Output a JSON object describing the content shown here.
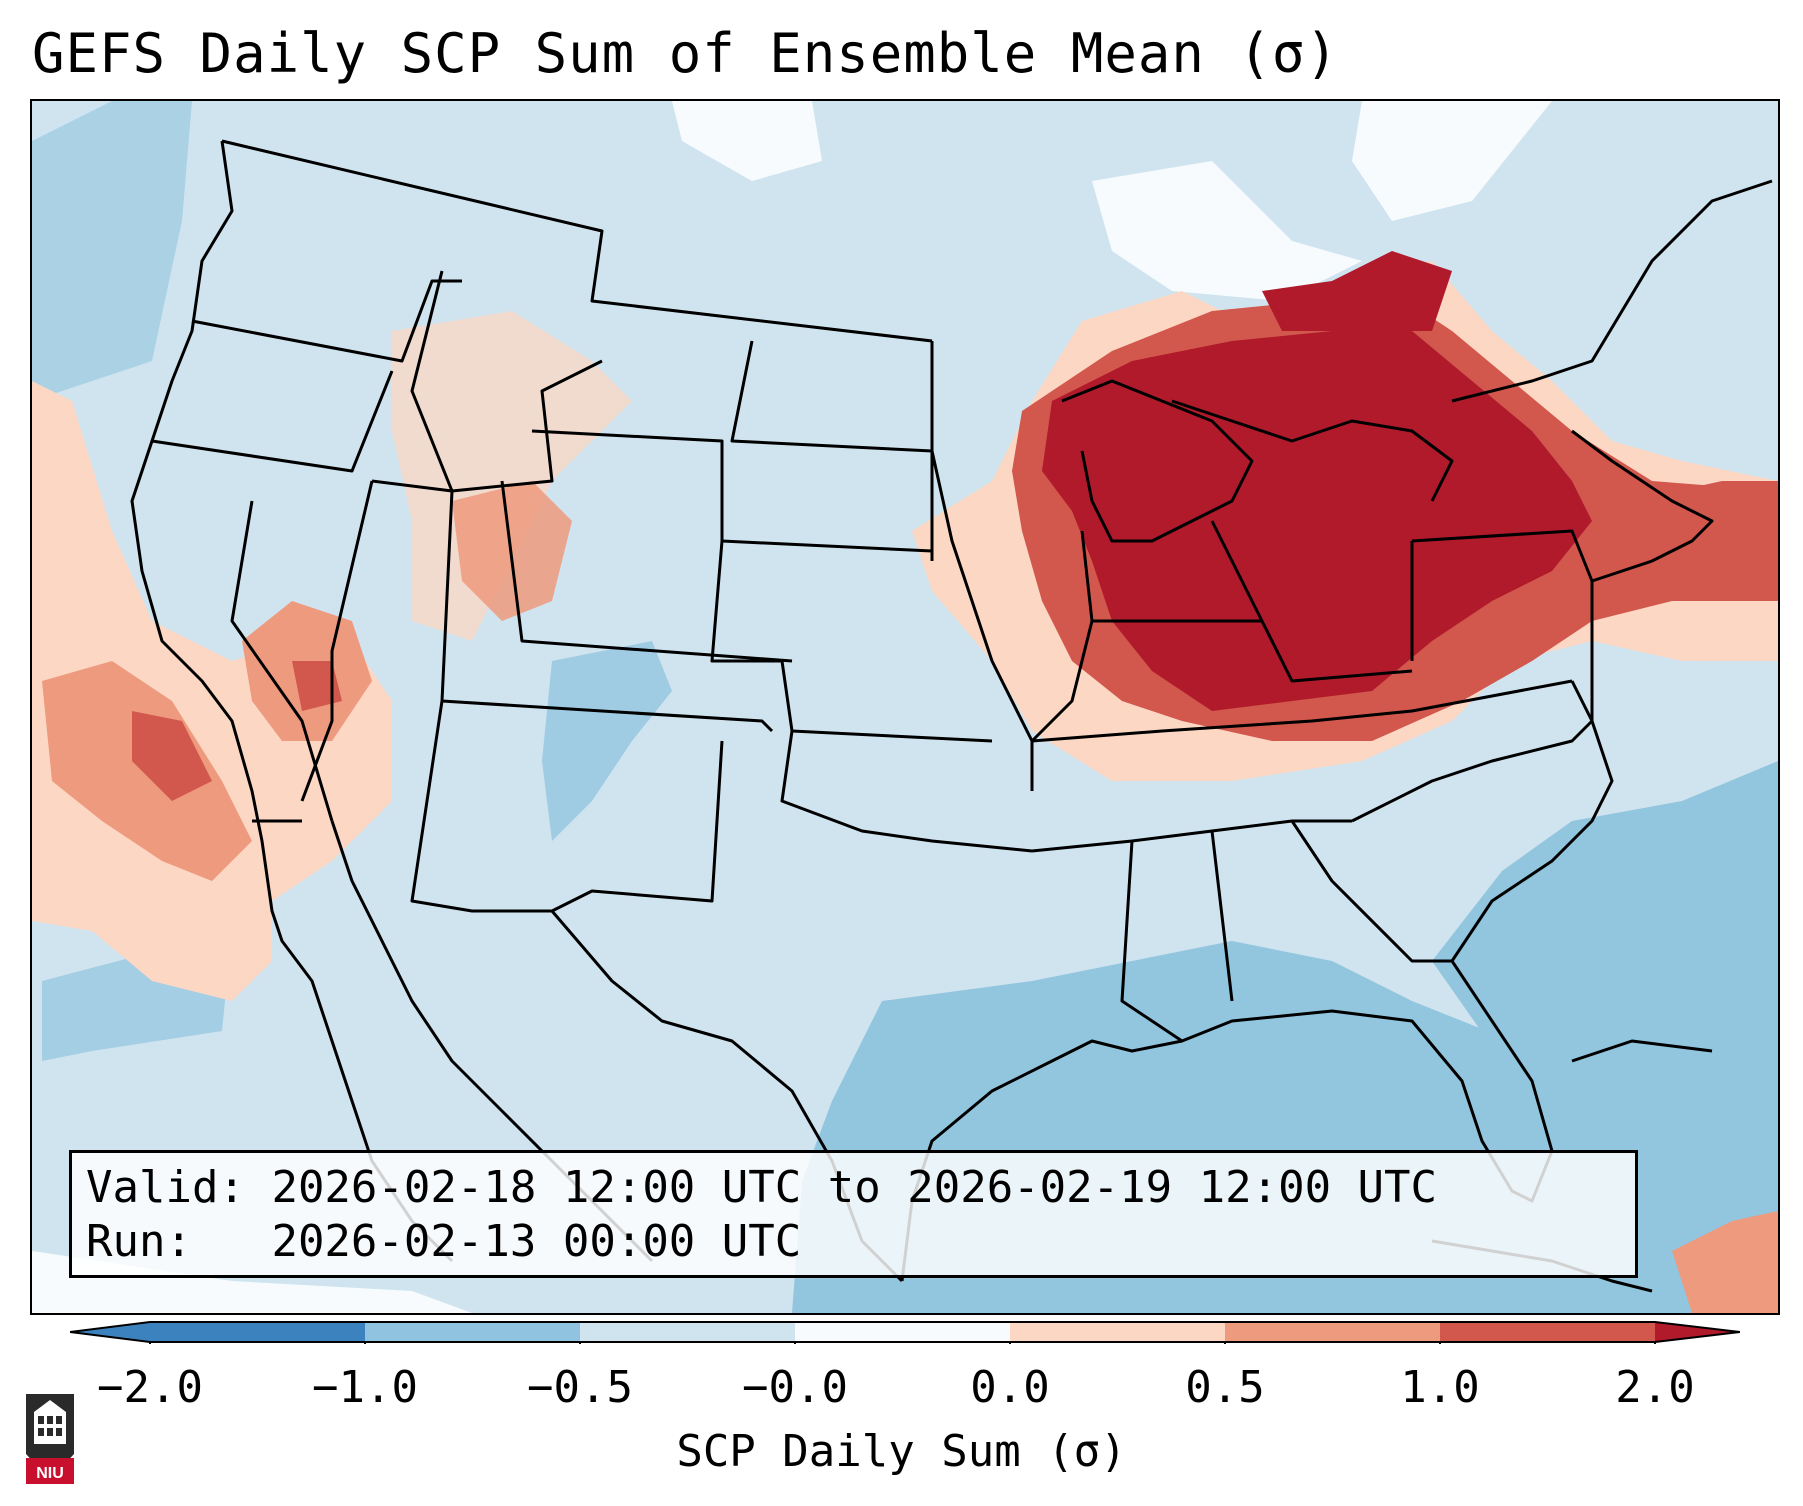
{
  "title": "GEFS Daily SCP Sum of Ensemble Mean (σ)",
  "info": {
    "valid_label": "Valid:",
    "valid_value": "2026-02-18 12:00 UTC to 2026-02-19 12:00 UTC",
    "run_label": "Run:",
    "run_value": "2026-02-13 00:00 UTC"
  },
  "colorbar": {
    "label": "SCP Daily Sum (σ)",
    "ticks": [
      "−2.0",
      "−1.0",
      "−0.5",
      "−0.0",
      "0.0",
      "0.5",
      "1.0",
      "2.0"
    ],
    "colors": [
      "#3b82be",
      "#8fc3df",
      "#d0e4f0",
      "#f7fbfd",
      "#fcd7c3",
      "#ee9a7e",
      "#d2574d",
      "#b01a2b"
    ]
  },
  "map": {
    "background_color": "#d0e4f0",
    "ocean_color": "#92c5de",
    "anomaly_regions": [
      {
        "name": "Great Lakes / Ohio Valley / Northeast",
        "level": "> 2.0",
        "color": "#b01a2b"
      },
      {
        "name": "Northeast coast / Atlantic",
        "level": "1.0 to 2.0",
        "color": "#d2574d"
      },
      {
        "name": "California / Nevada",
        "level": "0.5 to 2.0",
        "color": "#ee9a7e"
      },
      {
        "name": "Gulf of Mexico / Western Atlantic",
        "level": "-1.0 to -0.5",
        "color": "#92c5de"
      }
    ]
  },
  "logo": {
    "text": "NIU"
  }
}
